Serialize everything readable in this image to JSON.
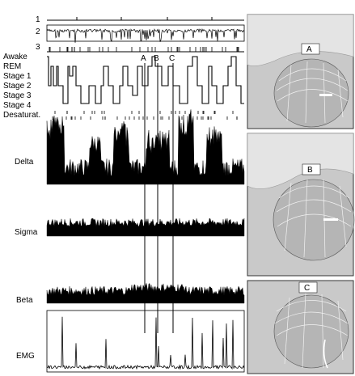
{
  "track_numbers": [
    "1",
    "2",
    "3"
  ],
  "stage_labels": [
    "Awake",
    "REM",
    "Stage 1",
    "Stage 2",
    "Stage 3",
    "Stage 4",
    "Desaturat."
  ],
  "band_labels": [
    "Delta",
    "Sigma",
    "Beta",
    "EMG"
  ],
  "markers": [
    "A",
    "B",
    "C"
  ],
  "photo_labels": [
    "A",
    "B",
    "C"
  ],
  "colors": {
    "trace": "#000000",
    "photo_bg": "#c9c9c9",
    "photo_border": "#333333"
  }
}
